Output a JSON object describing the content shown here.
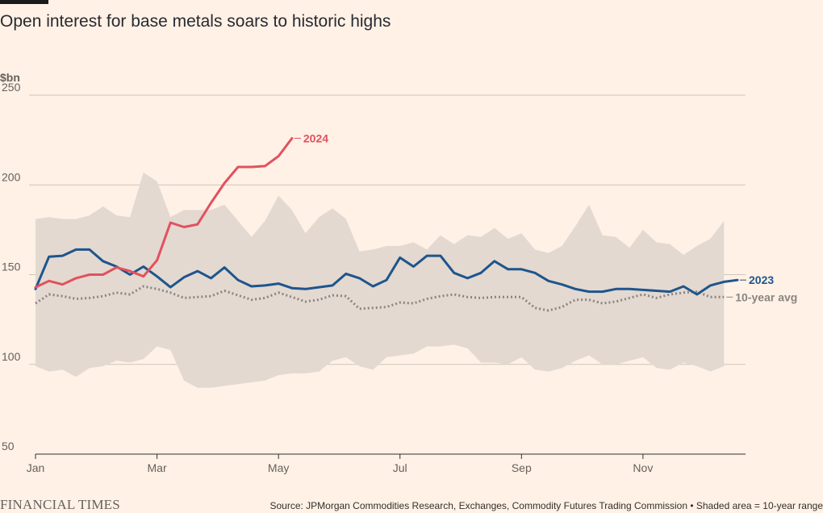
{
  "header": {
    "title": "Open interest for base metals soars to historic highs"
  },
  "footer": {
    "brand": "FINANCIAL TIMES",
    "source": "Source: JPMorgan Commodities Research, Exchanges, Commodity Futures Trading Commission • Shaded area = 10-year range"
  },
  "colors": {
    "background": "#fff1e5",
    "range_fill": "#e3d9d1",
    "series_2024": "#e3505d",
    "series_2023": "#1e558c",
    "series_avg": "#8a8581",
    "grid": "#cfc5bd",
    "axis_text": "#66605c"
  },
  "chart_data": {
    "type": "line",
    "title": "Open interest for base metals soars to historic highs",
    "ylabel": "$bn",
    "xlabel": "",
    "ylim": [
      50,
      250
    ],
    "yticks": [
      50,
      100,
      150,
      200,
      250
    ],
    "xlim": [
      1,
      53
    ],
    "x_ticks": [
      {
        "week": 1,
        "label": "Jan"
      },
      {
        "week": 10,
        "label": "Mar"
      },
      {
        "week": 19,
        "label": "May"
      },
      {
        "week": 28,
        "label": "Jul"
      },
      {
        "week": 37,
        "label": "Sep"
      },
      {
        "week": 46,
        "label": "Nov"
      }
    ],
    "grid": true,
    "range_10yr": {
      "name": "10-year range",
      "upper": [
        181,
        182,
        181,
        181,
        183,
        188,
        183,
        182,
        207,
        202,
        182,
        186,
        186,
        186,
        189,
        180,
        171,
        180,
        194,
        186,
        173,
        182,
        187,
        181,
        163,
        164,
        166,
        166,
        168,
        164,
        172,
        167,
        172,
        171,
        176,
        170,
        173,
        164,
        162,
        166,
        177,
        189,
        172,
        171,
        165,
        175,
        168,
        167,
        161,
        166,
        170,
        180
      ],
      "lower": [
        99,
        96,
        97,
        93,
        98,
        99,
        102,
        101,
        103,
        110,
        108,
        91,
        87,
        87,
        88,
        89,
        90,
        91,
        94,
        95,
        95,
        96,
        102,
        104,
        99,
        97,
        104,
        105,
        106,
        110,
        110,
        111,
        109,
        101,
        101,
        100,
        104,
        97,
        96,
        98,
        102,
        105,
        100,
        100,
        102,
        104,
        98,
        97,
        101,
        99,
        96,
        99
      ]
    },
    "series": [
      {
        "name": "2024",
        "label": "2024",
        "values": [
          143,
          146.5,
          144.5,
          148,
          150,
          150,
          154,
          152,
          149,
          158,
          179,
          176.5,
          178,
          190,
          201,
          210,
          210,
          210.5,
          216,
          226
        ]
      },
      {
        "name": "2023",
        "label": "2023",
        "values": [
          142,
          160,
          160.5,
          164,
          164,
          157.5,
          154.5,
          150,
          154.5,
          149,
          143,
          148.5,
          152,
          148,
          154,
          147,
          143.5,
          144,
          145,
          142.5,
          142,
          143,
          144,
          150.5,
          148,
          143.5,
          147,
          159.5,
          154.5,
          160.5,
          160.5,
          151,
          148,
          151,
          157.5,
          153,
          153,
          151,
          146.5,
          144.5,
          142,
          140.5,
          140.5,
          142,
          142,
          141.5,
          141,
          140.5,
          143.5,
          139,
          144,
          146,
          147
        ]
      },
      {
        "name": "10-year avg",
        "label": "10-year avg",
        "values": [
          134,
          139,
          138,
          136.5,
          137,
          138,
          140,
          139,
          143.5,
          142,
          140,
          137,
          137.5,
          138,
          141,
          138.5,
          136,
          137,
          140,
          137.5,
          135,
          136,
          138.5,
          138,
          131,
          131.5,
          132,
          134.5,
          134,
          136.5,
          138,
          139,
          137.5,
          137,
          137.5,
          137.5,
          137.5,
          131.5,
          130,
          132,
          136,
          136,
          134,
          135,
          137,
          139,
          137,
          139,
          140,
          140.5,
          137.5,
          137.5
        ]
      }
    ]
  }
}
